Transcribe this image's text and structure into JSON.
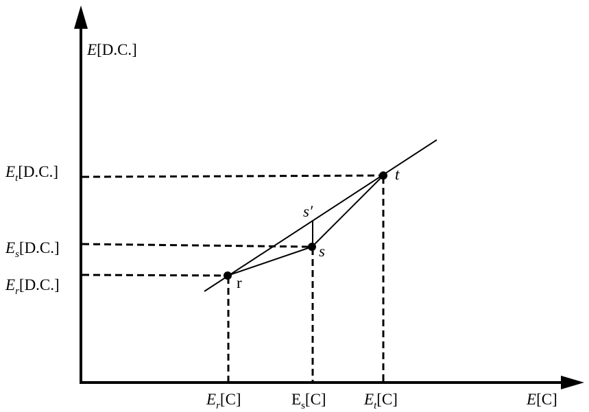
{
  "axes": {
    "y_label": {
      "base": "E",
      "bracket": "[D.C.]"
    },
    "x_label": {
      "base": "E",
      "bracket": "[C]"
    }
  },
  "y_labels": {
    "t": {
      "base": "E",
      "sub": "t",
      "bracket": "[D.C.]"
    },
    "s": {
      "base": "E",
      "sub": "s",
      "bracket": "[D.C.]"
    },
    "r": {
      "base": "E",
      "sub": "r",
      "bracket": "[D.C.]"
    }
  },
  "x_labels": {
    "r": {
      "base": "E",
      "sub": "r",
      "bracket": "[C]"
    },
    "s": {
      "base": "E",
      "sub": "s",
      "bracket": "[C]"
    },
    "t": {
      "base": "E",
      "sub": "t",
      "bracket": "[C]"
    }
  },
  "points": {
    "r": "r",
    "s": "s",
    "s_prime": "s′",
    "t": "t"
  }
}
